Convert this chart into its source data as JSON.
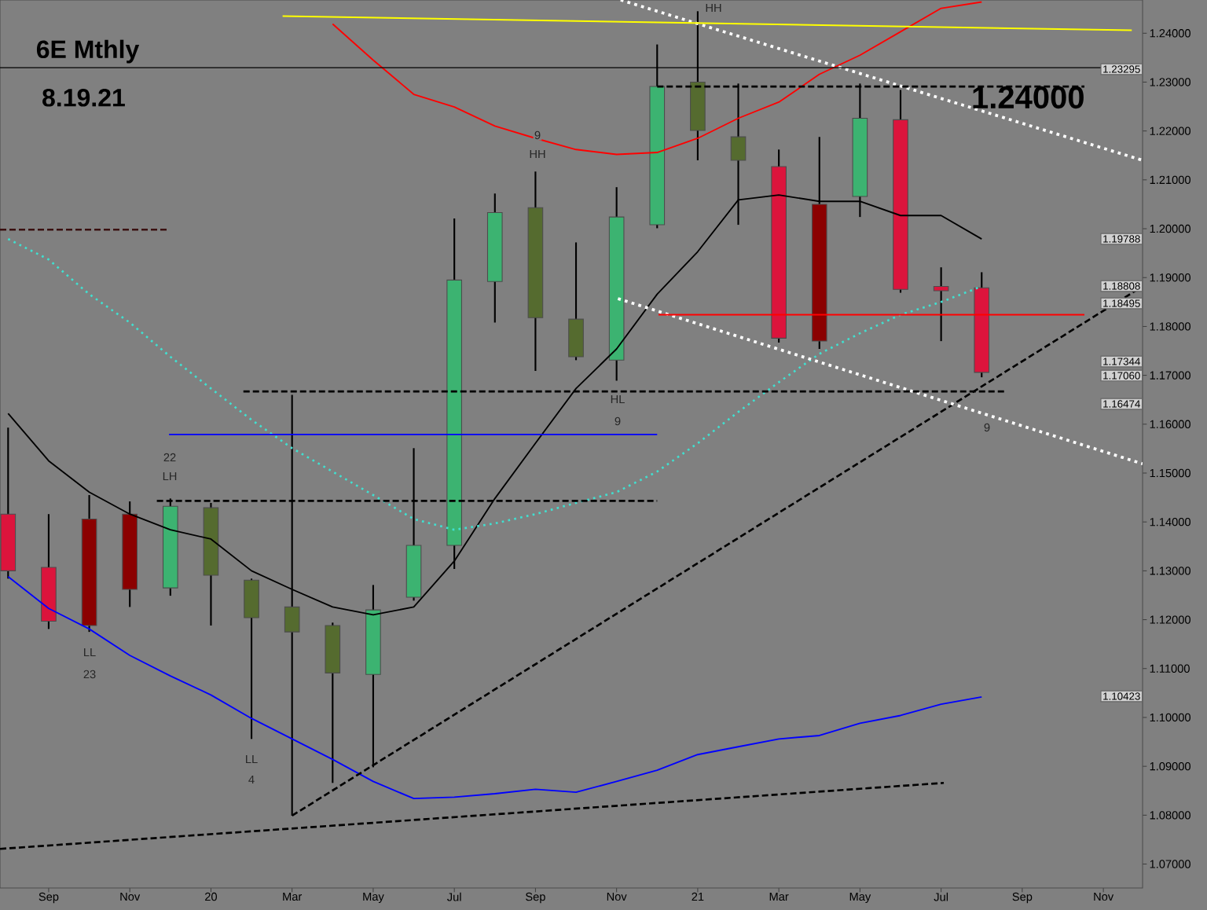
{
  "chart_data": {
    "type": "candlestick",
    "title": "6E Mthly",
    "subtitle": "8.19.21",
    "x": [
      "2019-08",
      "2019-09",
      "2019-10",
      "2019-11",
      "2019-12",
      "2020-01",
      "2020-02",
      "2020-03",
      "2020-04",
      "2020-05",
      "2020-06",
      "2020-07",
      "2020-08",
      "2020-09",
      "2020-10",
      "2020-11",
      "2020-12",
      "2021-01",
      "2021-02",
      "2021-03",
      "2021-04",
      "2021-05",
      "2021-06",
      "2021-07",
      "2021-08"
    ],
    "ohlc": [
      [
        1.1416,
        1.1593,
        1.1284,
        1.13
      ],
      [
        1.1307,
        1.1416,
        1.1181,
        1.1197
      ],
      [
        1.1188,
        1.1455,
        1.1175,
        1.1406
      ],
      [
        1.1416,
        1.1442,
        1.1226,
        1.1262
      ],
      [
        1.1265,
        1.1448,
        1.1249,
        1.1432
      ],
      [
        1.1429,
        1.1439,
        1.1188,
        1.1291
      ],
      [
        1.1281,
        1.1284,
        1.0956,
        1.1204
      ],
      [
        1.1226,
        1.166,
        1.0799,
        1.1175
      ],
      [
        1.1188,
        1.1194,
        1.0866,
        1.1091
      ],
      [
        1.1088,
        1.1271,
        1.0898,
        1.122
      ],
      [
        1.1246,
        1.1551,
        1.1239,
        1.1352
      ],
      [
        1.1352,
        1.2021,
        1.1304,
        1.1895
      ],
      [
        1.1892,
        1.2072,
        1.1808,
        1.2033
      ],
      [
        1.2043,
        1.2117,
        1.1709,
        1.1818
      ],
      [
        1.1815,
        1.1972,
        1.1731,
        1.1738
      ],
      [
        1.1731,
        1.2085,
        1.1689,
        1.2024
      ],
      [
        1.2008,
        1.2377,
        1.2001,
        1.2291
      ],
      [
        1.23,
        1.2445,
        1.214,
        1.2201
      ],
      [
        1.2188,
        1.2297,
        1.2008,
        1.214
      ],
      [
        1.2127,
        1.2162,
        1.1767,
        1.1776
      ],
      [
        1.177,
        1.2188,
        1.1754,
        1.205
      ],
      [
        1.2066,
        1.2297,
        1.2024,
        1.2226
      ],
      [
        1.2223,
        1.2284,
        1.1869,
        1.1876
      ],
      [
        1.1882,
        1.1921,
        1.177,
        1.1873
      ],
      [
        1.1879,
        1.1911,
        1.1696,
        1.1706
      ]
    ],
    "colors": [
      "#dc143c",
      "#dc143c",
      "#8b0000",
      "#8b0000",
      "#3cb371",
      "#556b2f",
      "#556b2f",
      "#556b2f",
      "#556b2f",
      "#3cb371",
      "#3cb371",
      "#3cb371",
      "#3cb371",
      "#556b2f",
      "#556b2f",
      "#3cb371",
      "#3cb371",
      "#556b2f",
      "#556b2f",
      "#dc143c",
      "#8b0000",
      "#3cb371",
      "#dc143c",
      "#dc143c",
      "#dc143c"
    ],
    "series": [
      {
        "type": "line",
        "color": "#000000",
        "line_style": "solid",
        "values": [
          1.1622,
          1.1525,
          1.1461,
          1.1416,
          1.1384,
          1.1365,
          1.13,
          1.1262,
          1.1226,
          1.121,
          1.1226,
          1.132,
          1.1448,
          1.1561,
          1.1673,
          1.1754,
          1.1866,
          1.1953,
          1.2059,
          1.2069,
          1.2056,
          1.2056,
          1.2027,
          1.2027,
          1.1979
        ]
      },
      {
        "type": "line",
        "color": "#ff0000",
        "line_style": "solid",
        "values": [
          null,
          null,
          null,
          null,
          null,
          null,
          null,
          null,
          1.2419,
          1.2345,
          1.2275,
          1.2249,
          1.221,
          1.2185,
          1.2162,
          1.2152,
          1.2156,
          1.2185,
          1.2226,
          1.2259,
          1.2316,
          1.2355,
          1.2403,
          1.2451,
          1.2464
        ]
      },
      {
        "type": "line",
        "color": "#0000ff",
        "line_style": "solid",
        "values": [
          1.1288,
          1.1223,
          1.1181,
          1.1127,
          1.1085,
          1.1046,
          1.0998,
          1.0956,
          1.0914,
          1.0869,
          1.0834,
          1.0837,
          1.0844,
          1.0853,
          1.0847,
          1.0869,
          1.0892,
          1.0924,
          1.094,
          1.0956,
          1.0963,
          1.0988,
          1.1004,
          1.1027,
          1.1042
        ]
      },
      {
        "type": "line",
        "color": "#40e0d0",
        "line_style": "dotted",
        "values": [
          1.1979,
          1.1937,
          1.1866,
          1.1808,
          1.1738,
          1.1673,
          1.1609,
          1.1551,
          1.1503,
          1.1455,
          1.1406,
          1.1384,
          1.1397,
          1.1416,
          1.1439,
          1.1461,
          1.1503,
          1.1561,
          1.1625,
          1.1686,
          1.1744,
          1.1786,
          1.1824,
          1.185,
          1.1882
        ]
      },
      {
        "type": "line",
        "color": "#000000",
        "line_style": "dashed",
        "x": [
          "2020-03-01",
          "2021-11-30"
        ],
        "values": [
          1.0799,
          1.1882
        ]
      },
      {
        "type": "line",
        "color": "#000000",
        "line_style": "dashed",
        "x": [
          "2019-07-25",
          "2021-07-03"
        ],
        "values": [
          1.0731,
          1.0866
        ]
      },
      {
        "type": "line",
        "color": "#ffffff",
        "line_style": "dotted",
        "x": [
          "2020-11-04",
          "2021-11-30"
        ],
        "values": [
          1.2468,
          1.214
        ]
      },
      {
        "type": "line",
        "color": "#ffffff",
        "line_style": "dotted",
        "x": [
          "2020-11-02",
          "2021-11-30"
        ],
        "values": [
          1.1857,
          1.1519
        ]
      },
      {
        "type": "line",
        "color": "#ffff00",
        "line_style": "solid",
        "x": [
          "2020-02-24",
          "2021-11-22"
        ],
        "values": [
          1.2435,
          1.2406
        ]
      },
      {
        "type": "line",
        "color": "#000000",
        "line_style": "dashed",
        "x": [
          "2020-01-25",
          "2021-08-19"
        ],
        "values": [
          1.1667,
          1.1667
        ]
      },
      {
        "type": "line",
        "color": "#000000",
        "line_style": "dashed",
        "x": [
          "2020-12-01",
          "2021-10-17"
        ],
        "values": [
          1.2291,
          1.2291
        ]
      },
      {
        "type": "line",
        "color": "#0000ff",
        "line_style": "solid",
        "x": [
          "2019-11-30",
          "2020-12-01"
        ],
        "values": [
          1.1579,
          1.1579
        ]
      },
      {
        "type": "line",
        "color": "#ff0000",
        "line_style": "solid",
        "x": [
          "2020-12-02",
          "2021-10-17"
        ],
        "values": [
          1.1824,
          1.1824
        ]
      },
      {
        "type": "line",
        "color": "#000000",
        "line_style": "dashed",
        "x": [
          "2019-11-21",
          "2020-12-01"
        ],
        "values": [
          1.1443,
          1.1443
        ]
      },
      {
        "type": "line",
        "color": "#3a1010",
        "line_style": "dashed",
        "x": [
          "2019-07-25",
          "2019-11-30"
        ],
        "values": [
          1.1998,
          1.1998
        ]
      }
    ],
    "ref_lines": [
      {
        "axis": "y",
        "value": 1.23295,
        "color": "#000000",
        "line_style": "solid"
      }
    ],
    "xlim": [
      "2019-07-25",
      "2021-11-30"
    ],
    "xticks": [
      {
        "value": "2019-09-01",
        "label": "Sep"
      },
      {
        "value": "2019-11-01",
        "label": "Nov"
      },
      {
        "value": "2020-01-01",
        "label": "20"
      },
      {
        "value": "2020-03-01",
        "label": "Mar"
      },
      {
        "value": "2020-05-01",
        "label": "May"
      },
      {
        "value": "2020-07-01",
        "label": "Jul"
      },
      {
        "value": "2020-09-01",
        "label": "Sep"
      },
      {
        "value": "2020-11-01",
        "label": "Nov"
      },
      {
        "value": "2021-01-01",
        "label": "21"
      },
      {
        "value": "2021-03-01",
        "label": "Mar"
      },
      {
        "value": "2021-05-01",
        "label": "May"
      },
      {
        "value": "2021-07-01",
        "label": "Jul"
      },
      {
        "value": "2021-09-01",
        "label": "Sep"
      },
      {
        "value": "2021-11-01",
        "label": "Nov"
      }
    ],
    "ylim": [
      1.0651,
      1.2468
    ],
    "yticks": [
      {
        "value": 1.07,
        "label": "1.07000"
      },
      {
        "value": 1.08,
        "label": "1.08000"
      },
      {
        "value": 1.09,
        "label": "1.09000"
      },
      {
        "value": 1.1,
        "label": "1.10000"
      },
      {
        "value": 1.11,
        "label": "1.11000"
      },
      {
        "value": 1.12,
        "label": "1.12000"
      },
      {
        "value": 1.13,
        "label": "1.13000"
      },
      {
        "value": 1.14,
        "label": "1.14000"
      },
      {
        "value": 1.15,
        "label": "1.15000"
      },
      {
        "value": 1.16,
        "label": "1.16000"
      },
      {
        "value": 1.17,
        "label": "1.17000"
      },
      {
        "value": 1.18,
        "label": "1.18000"
      },
      {
        "value": 1.19,
        "label": "1.19000"
      },
      {
        "value": 1.2,
        "label": "1.20000"
      },
      {
        "value": 1.21,
        "label": "1.21000"
      },
      {
        "value": 1.22,
        "label": "1.22000"
      },
      {
        "value": 1.23,
        "label": "1.23000"
      },
      {
        "value": 1.24,
        "label": "1.24000"
      }
    ],
    "annotations": [
      "1.24000",
      "9",
      "HH",
      "HH",
      "HL",
      "9",
      "22",
      "LH",
      "LL",
      "23",
      "LL",
      "4",
      "9",
      "1.23295",
      "1.19788",
      "1.18808",
      "1.18495",
      "1.17344",
      "1.17060",
      "1.16474",
      "1.10423"
    ]
  }
}
